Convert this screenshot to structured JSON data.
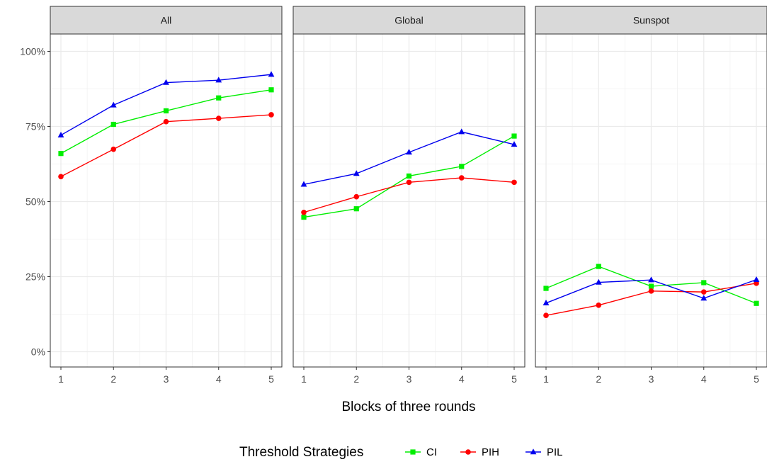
{
  "chart_data": {
    "type": "line",
    "facets": [
      "All",
      "Global",
      "Sunspot"
    ],
    "x": [
      1,
      2,
      3,
      4,
      5
    ],
    "xlabel": "Blocks of three rounds",
    "ylabel": "",
    "ylim": [
      0,
      1.05
    ],
    "yticks": [
      0,
      0.25,
      0.5,
      0.75,
      1.0
    ],
    "ytick_labels": [
      "0%",
      "25%",
      "50%",
      "75%",
      "100%"
    ],
    "grid": true,
    "legend_title": "Threshold Strategies",
    "legend_position": "bottom",
    "series": [
      {
        "name": "CI",
        "color": "#00ee00",
        "marker": "square",
        "values": {
          "All": [
            0.66,
            0.757,
            0.802,
            0.845,
            0.872
          ],
          "Global": [
            0.448,
            0.476,
            0.585,
            0.617,
            0.718
          ],
          "Sunspot": [
            0.211,
            0.284,
            0.218,
            0.23,
            0.161
          ]
        }
      },
      {
        "name": "PIH",
        "color": "#ff0000",
        "marker": "circle",
        "values": {
          "All": [
            0.583,
            0.674,
            0.766,
            0.777,
            0.789
          ],
          "Global": [
            0.464,
            0.516,
            0.564,
            0.579,
            0.564
          ],
          "Sunspot": [
            0.121,
            0.155,
            0.202,
            0.199,
            0.228
          ]
        }
      },
      {
        "name": "PIL",
        "color": "#0000ee",
        "marker": "triangle",
        "values": {
          "All": [
            0.721,
            0.821,
            0.896,
            0.904,
            0.923
          ],
          "Global": [
            0.557,
            0.593,
            0.664,
            0.732,
            0.69
          ],
          "Sunspot": [
            0.162,
            0.231,
            0.239,
            0.178,
            0.24
          ]
        }
      }
    ]
  }
}
